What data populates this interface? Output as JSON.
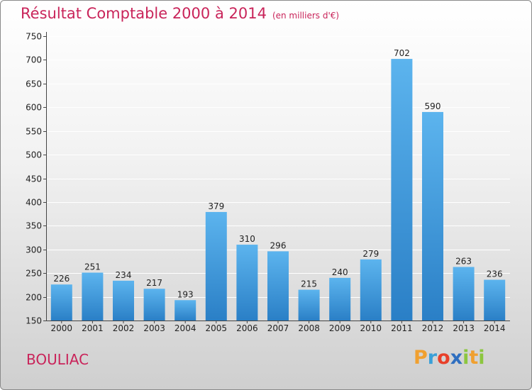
{
  "title": "Résultat Comptable 2000 à 2014",
  "subtitle": "(en milliers d'€)",
  "commune": "BOULIAC",
  "logo": {
    "text": "Proxiti",
    "letters": [
      {
        "ch": "P",
        "color": "#f0a030"
      },
      {
        "ch": "r",
        "color": "#3aa0d8"
      },
      {
        "ch": "o",
        "color": "#e8402a"
      },
      {
        "ch": "x",
        "color": "#2f6fc0"
      },
      {
        "ch": "i",
        "color": "#8cc63f"
      },
      {
        "ch": "t",
        "color": "#f0a030"
      },
      {
        "ch": "i",
        "color": "#8cc63f"
      }
    ]
  },
  "colors": {
    "title": "#c9245a",
    "bar_top": "#5cb4ee",
    "bar_bottom": "#2a7fc6",
    "grid": "#ffffff"
  },
  "chart_data": {
    "type": "bar",
    "title": "Résultat Comptable 2000 à 2014",
    "subtitle": "(en milliers d'€)",
    "categories": [
      "2000",
      "2001",
      "2002",
      "2003",
      "2004",
      "2005",
      "2006",
      "2007",
      "2008",
      "2009",
      "2010",
      "2011",
      "2012",
      "2013",
      "2014"
    ],
    "values": [
      226,
      251,
      234,
      217,
      193,
      379,
      310,
      296,
      215,
      240,
      279,
      702,
      590,
      263,
      236
    ],
    "ylim": [
      150,
      750
    ],
    "yticks": [
      150,
      200,
      250,
      300,
      350,
      400,
      450,
      500,
      550,
      600,
      650,
      700,
      750
    ],
    "grid": true,
    "data_labels": true
  }
}
